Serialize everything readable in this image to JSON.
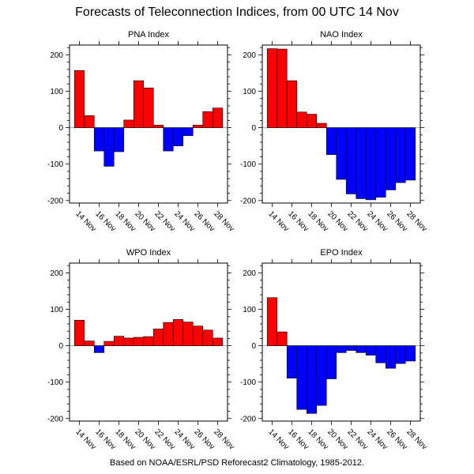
{
  "title": "Forecasts of Teleconnection Indices, from 00 UTC 14 Nov",
  "footer": "Based on NOAA/ESRL/PSD Reforecast2 Climatology, 1985-2012.",
  "colors": {
    "positive": "#ff0000",
    "negative": "#0000ff",
    "outline": "#000000",
    "zero_line": "#aaaaaa"
  },
  "chart_data": [
    {
      "type": "bar",
      "title": "PNA Index",
      "categories": [
        "14 Nov",
        "15 Nov",
        "16 Nov",
        "17 Nov",
        "18 Nov",
        "19 Nov",
        "20 Nov",
        "21 Nov",
        "22 Nov",
        "23 Nov",
        "24 Nov",
        "25 Nov",
        "26 Nov",
        "27 Nov",
        "28 Nov"
      ],
      "tick_labels": [
        "14 Nov",
        "16 Nov",
        "18 Nov",
        "20 Nov",
        "22 Nov",
        "24 Nov",
        "26 Nov",
        "28 Nov"
      ],
      "values": [
        157,
        33,
        -64,
        -106,
        -66,
        21,
        129,
        109,
        7,
        -64,
        -50,
        -22,
        7,
        44,
        54
      ],
      "yticks": [
        -200,
        -100,
        0,
        100,
        200
      ],
      "ylim": [
        -207,
        227
      ],
      "grid": false
    },
    {
      "type": "bar",
      "title": "NAO Index",
      "categories": [
        "14 Nov",
        "15 Nov",
        "16 Nov",
        "17 Nov",
        "18 Nov",
        "19 Nov",
        "20 Nov",
        "21 Nov",
        "22 Nov",
        "23 Nov",
        "24 Nov",
        "25 Nov",
        "26 Nov",
        "27 Nov",
        "28 Nov"
      ],
      "tick_labels": [
        "14 Nov",
        "16 Nov",
        "18 Nov",
        "20 Nov",
        "22 Nov",
        "24 Nov",
        "26 Nov",
        "28 Nov"
      ],
      "values": [
        217,
        216,
        129,
        43,
        37,
        12,
        -74,
        -142,
        -182,
        -195,
        -198,
        -191,
        -171,
        -151,
        -144
      ],
      "yticks": [
        -200,
        -100,
        0,
        100,
        200
      ],
      "ylim": [
        -207,
        227
      ],
      "grid": false
    },
    {
      "type": "bar",
      "title": "WPO Index",
      "categories": [
        "14 Nov",
        "15 Nov",
        "16 Nov",
        "17 Nov",
        "18 Nov",
        "19 Nov",
        "20 Nov",
        "21 Nov",
        "22 Nov",
        "23 Nov",
        "24 Nov",
        "25 Nov",
        "26 Nov",
        "27 Nov",
        "28 Nov"
      ],
      "tick_labels": [
        "14 Nov",
        "16 Nov",
        "18 Nov",
        "20 Nov",
        "22 Nov",
        "24 Nov",
        "26 Nov",
        "28 Nov"
      ],
      "values": [
        70,
        13,
        -19,
        12,
        26,
        21,
        23,
        25,
        46,
        64,
        72,
        65,
        54,
        43,
        21
      ],
      "yticks": [
        -200,
        -100,
        0,
        100,
        200
      ],
      "ylim": [
        -207,
        227
      ],
      "grid": false
    },
    {
      "type": "bar",
      "title": "EPO Index",
      "categories": [
        "14 Nov",
        "15 Nov",
        "16 Nov",
        "17 Nov",
        "18 Nov",
        "19 Nov",
        "20 Nov",
        "21 Nov",
        "22 Nov",
        "23 Nov",
        "24 Nov",
        "25 Nov",
        "26 Nov",
        "27 Nov",
        "28 Nov"
      ],
      "tick_labels": [
        "14 Nov",
        "16 Nov",
        "18 Nov",
        "20 Nov",
        "22 Nov",
        "24 Nov",
        "26 Nov",
        "28 Nov"
      ],
      "values": [
        132,
        38,
        -89,
        -175,
        -186,
        -164,
        -91,
        -19,
        -13,
        -19,
        -26,
        -47,
        -62,
        -49,
        -42
      ],
      "yticks": [
        -200,
        -100,
        0,
        100,
        200
      ],
      "ylim": [
        -207,
        227
      ],
      "grid": false
    }
  ]
}
